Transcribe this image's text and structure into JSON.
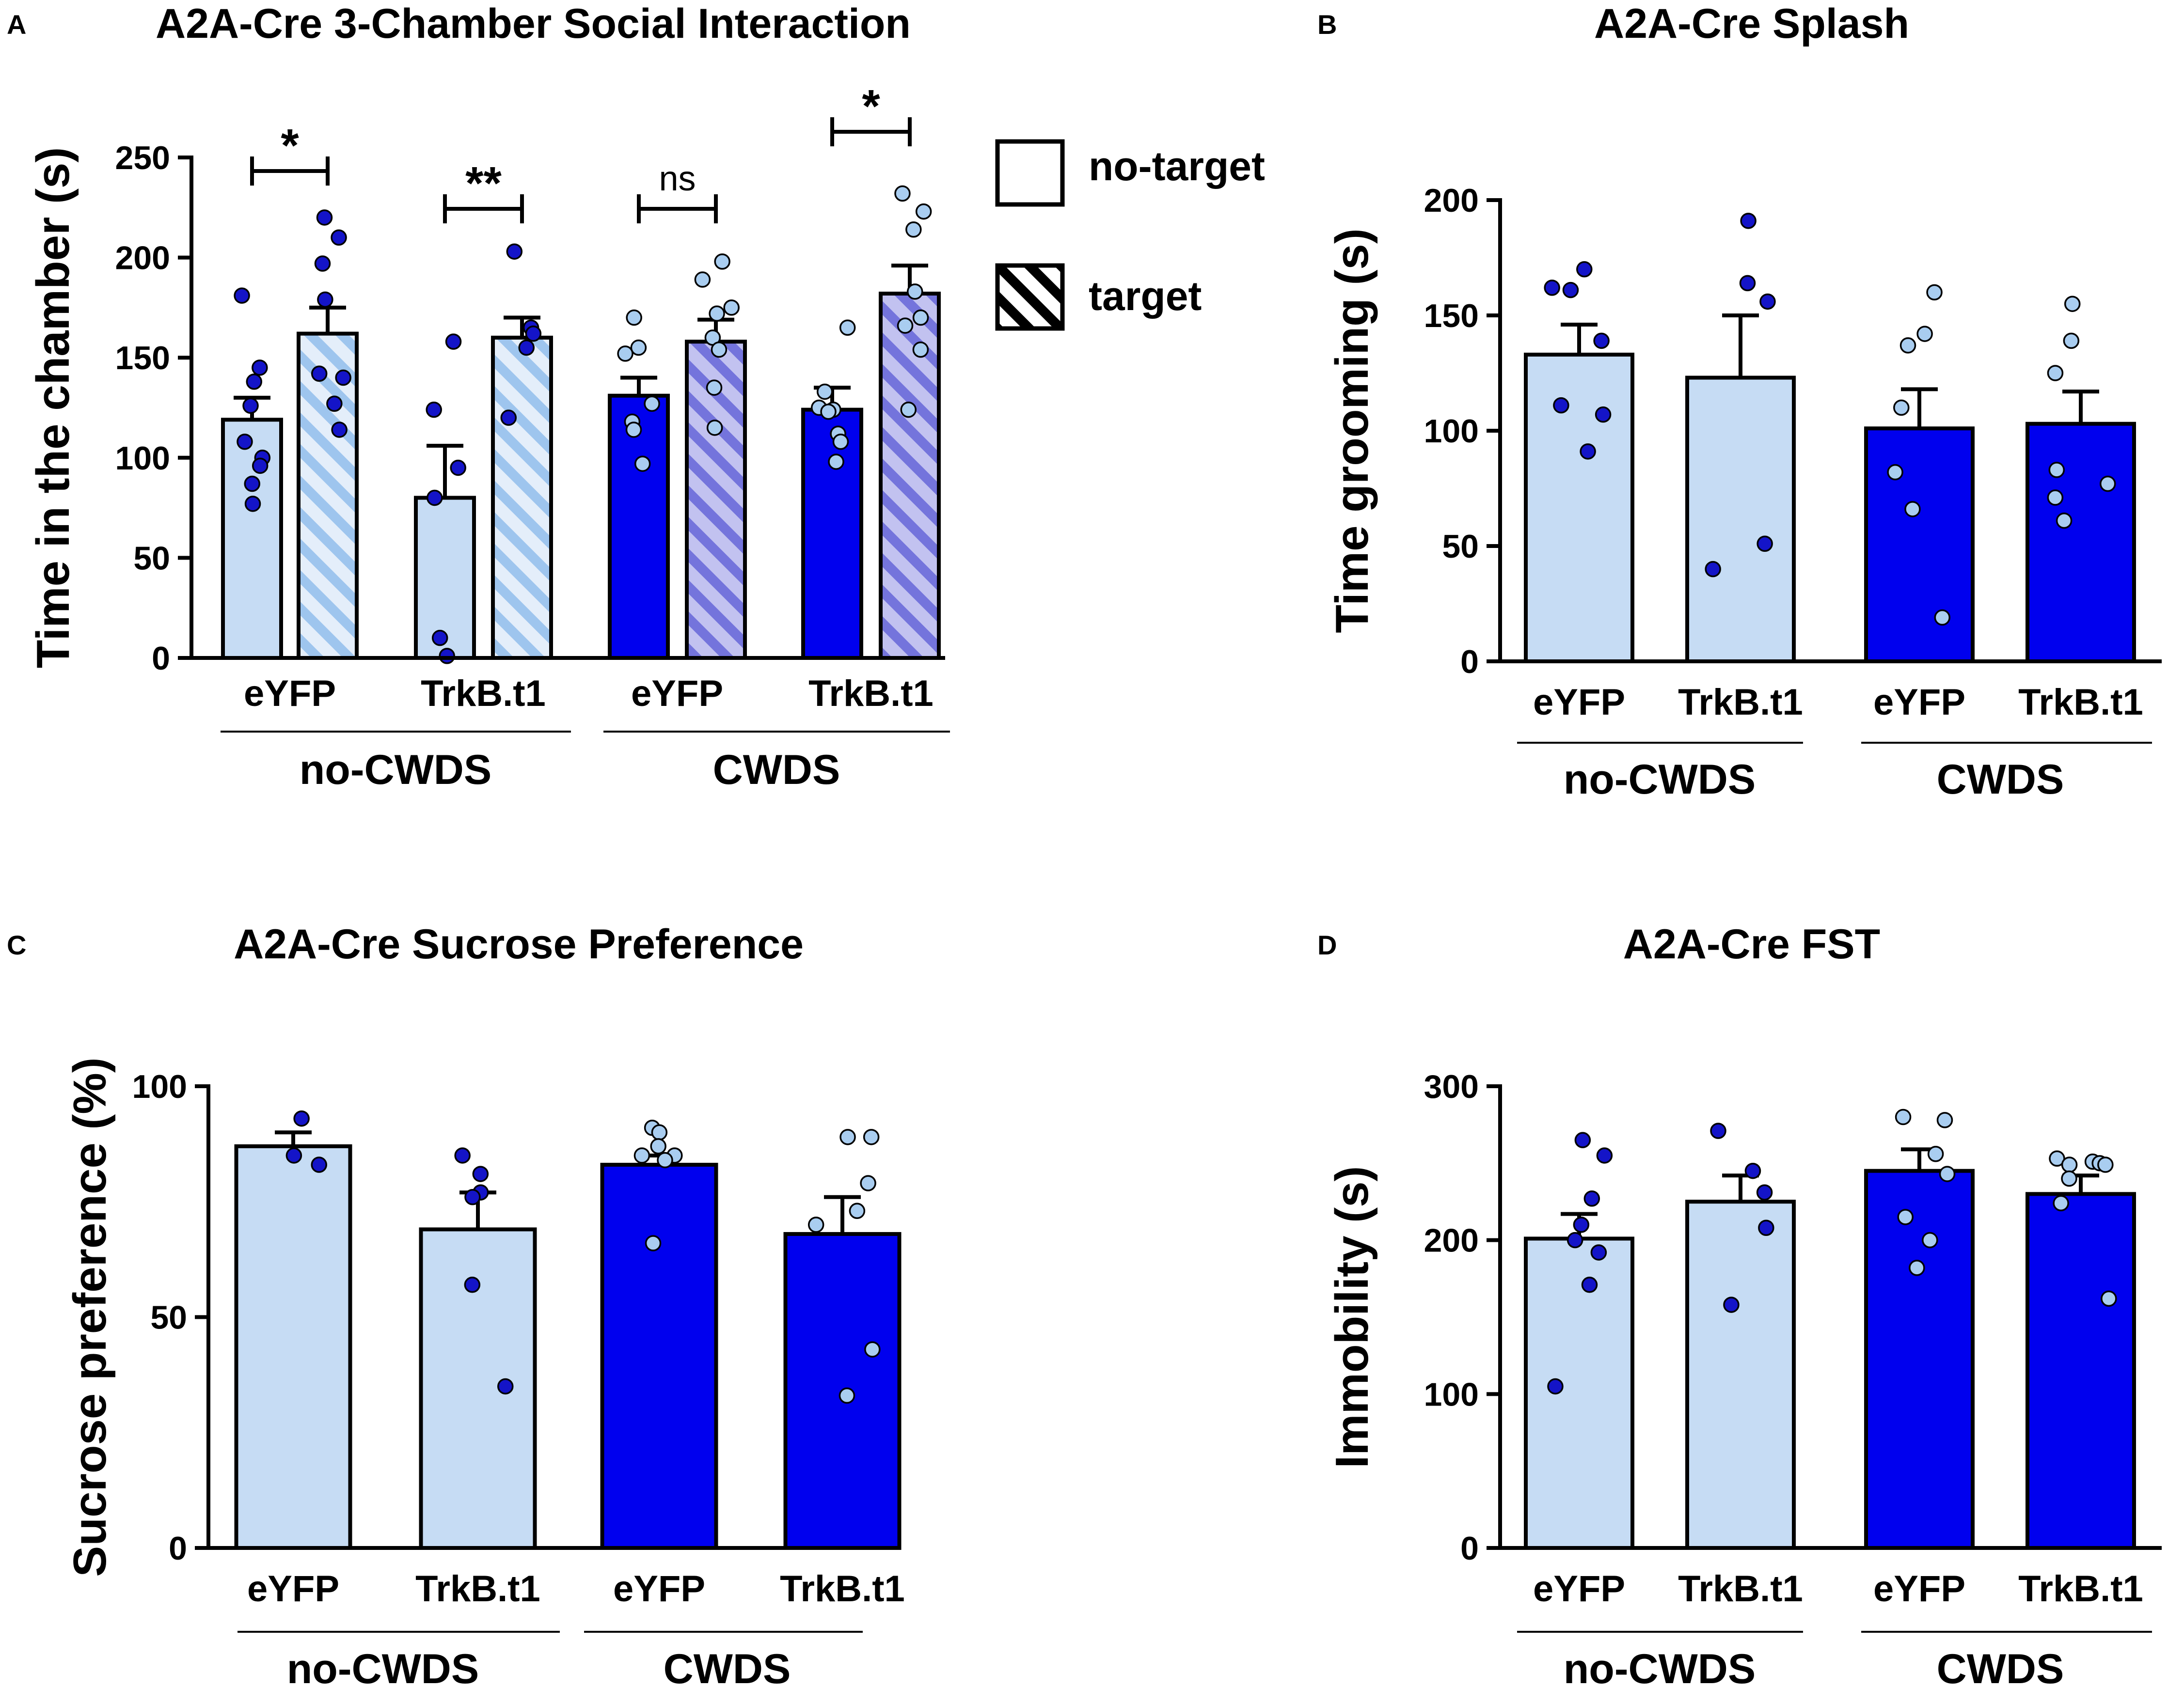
{
  "colors": {
    "light": "#c6dcf4",
    "dark": "#0000ee",
    "hatch_light_bg": "#e4eefa",
    "hatch_light_line": "#9ec5ee",
    "hatch_dark_bg": "#c2c2f0",
    "hatch_dark_line": "#7474dc",
    "dot_dark": "#1414c8",
    "dot_light": "#a9cdf0"
  },
  "chart_data": [
    {
      "panel": "A",
      "type": "bar",
      "title": "A2A-Cre 3-Chamber Social Interaction",
      "ylabel": "Time in the chamber (s)",
      "ylim": [
        0,
        250
      ],
      "yticks": [
        0,
        50,
        100,
        150,
        200,
        250
      ],
      "xtick_labels": [
        "eYFP",
        "TrkB.t1",
        "eYFP",
        "TrkB.t1"
      ],
      "group_labels": [
        "no-CWDS",
        "CWDS"
      ],
      "legend": {
        "no_target": "no-target",
        "target": "target"
      },
      "series": [
        {
          "name": "eYFP no-target (no-CWDS)",
          "value": 119,
          "sem": 11,
          "points": [
            181,
            145,
            138,
            126,
            108,
            100,
            96,
            87,
            77
          ]
        },
        {
          "name": "eYFP target (no-CWDS)",
          "value": 162,
          "sem": 13,
          "points": [
            220,
            210,
            197,
            179,
            142,
            140,
            127,
            114
          ]
        },
        {
          "name": "TrkB.t1 no-target (no-CWDS)",
          "value": 80,
          "sem": 26,
          "points": [
            158,
            124,
            95,
            80,
            10,
            1
          ]
        },
        {
          "name": "TrkB.t1 target (no-CWDS)",
          "value": 160,
          "sem": 10,
          "points": [
            203,
            165,
            162,
            155,
            120
          ]
        },
        {
          "name": "eYFP no-target (CWDS)",
          "value": 131,
          "sem": 9,
          "points": [
            170,
            155,
            152,
            127,
            118,
            114,
            97
          ]
        },
        {
          "name": "eYFP target (CWDS)",
          "value": 158,
          "sem": 11,
          "points": [
            198,
            189,
            175,
            172,
            160,
            154,
            135,
            115
          ]
        },
        {
          "name": "TrkB.t1 no-target (CWDS)",
          "value": 124,
          "sem": 11,
          "points": [
            165,
            133,
            125,
            124,
            123,
            112,
            108,
            98
          ]
        },
        {
          "name": "TrkB.t1 target (CWDS)",
          "value": 182,
          "sem": 14,
          "points": [
            232,
            223,
            214,
            183,
            170,
            166,
            154,
            124
          ]
        }
      ],
      "significance": [
        "*",
        "**",
        "ns",
        "*"
      ]
    },
    {
      "panel": "B",
      "type": "bar",
      "title": "A2A-Cre Splash",
      "ylabel": "Time grooming (s)",
      "ylim": [
        0,
        200
      ],
      "yticks": [
        0,
        50,
        100,
        150,
        200
      ],
      "xtick_labels": [
        "eYFP",
        "TrkB.t1",
        "eYFP",
        "TrkB.t1"
      ],
      "group_labels": [
        "no-CWDS",
        "CWDS"
      ],
      "series": [
        {
          "name": "eYFP (no-CWDS)",
          "value": 133,
          "sem": 13,
          "points": [
            170,
            162,
            161,
            139,
            111,
            107,
            91
          ]
        },
        {
          "name": "TrkB.t1 (no-CWDS)",
          "value": 123,
          "sem": 27,
          "points": [
            191,
            164,
            156,
            51,
            40
          ]
        },
        {
          "name": "eYFP (CWDS)",
          "value": 101,
          "sem": 17,
          "points": [
            160,
            142,
            137,
            110,
            82,
            66,
            19
          ]
        },
        {
          "name": "TrkB.t1 (CWDS)",
          "value": 103,
          "sem": 14,
          "points": [
            155,
            139,
            125,
            83,
            77,
            71,
            61
          ]
        }
      ]
    },
    {
      "panel": "C",
      "type": "bar",
      "title": "A2A-Cre Sucrose Preference",
      "ylabel": "Sucrose preference (%)",
      "ylim": [
        0,
        100
      ],
      "yticks": [
        0,
        50,
        100
      ],
      "xtick_labels": [
        "eYFP",
        "TrkB.t1",
        "eYFP",
        "TrkB.t1"
      ],
      "group_labels": [
        "no-CWDS",
        "CWDS"
      ],
      "series": [
        {
          "name": "eYFP (no-CWDS)",
          "value": 87,
          "sem": 3,
          "points": [
            93,
            85,
            83
          ]
        },
        {
          "name": "TrkB.t1 (no-CWDS)",
          "value": 69,
          "sem": 8,
          "points": [
            85,
            81,
            77,
            76,
            57,
            35
          ]
        },
        {
          "name": "eYFP (CWDS)",
          "value": 83,
          "sem": 2,
          "points": [
            91,
            90,
            87,
            85,
            85,
            84,
            66
          ]
        },
        {
          "name": "TrkB.t1 (CWDS)",
          "value": 68,
          "sem": 8,
          "points": [
            89,
            89,
            79,
            73,
            70,
            43,
            33
          ]
        }
      ]
    },
    {
      "panel": "D",
      "type": "bar",
      "title": "A2A-Cre FST",
      "ylabel": "Immobility (s)",
      "ylim": [
        0,
        300
      ],
      "yticks": [
        0,
        100,
        200,
        300
      ],
      "xtick_labels": [
        "eYFP",
        "TrkB.t1",
        "eYFP",
        "TrkB.t1"
      ],
      "group_labels": [
        "no-CWDS",
        "CWDS"
      ],
      "series": [
        {
          "name": "eYFP (no-CWDS)",
          "value": 201,
          "sem": 16,
          "points": [
            265,
            255,
            227,
            210,
            200,
            192,
            171,
            105
          ]
        },
        {
          "name": "TrkB.t1 (no-CWDS)",
          "value": 225,
          "sem": 17,
          "points": [
            271,
            245,
            231,
            208,
            158
          ]
        },
        {
          "name": "eYFP (CWDS)",
          "value": 245,
          "sem": 14,
          "points": [
            280,
            278,
            256,
            243,
            215,
            200,
            182
          ]
        },
        {
          "name": "TrkB.t1 (CWDS)",
          "value": 230,
          "sem": 12,
          "points": [
            253,
            251,
            250,
            249,
            249,
            240,
            224,
            162
          ]
        }
      ]
    }
  ]
}
